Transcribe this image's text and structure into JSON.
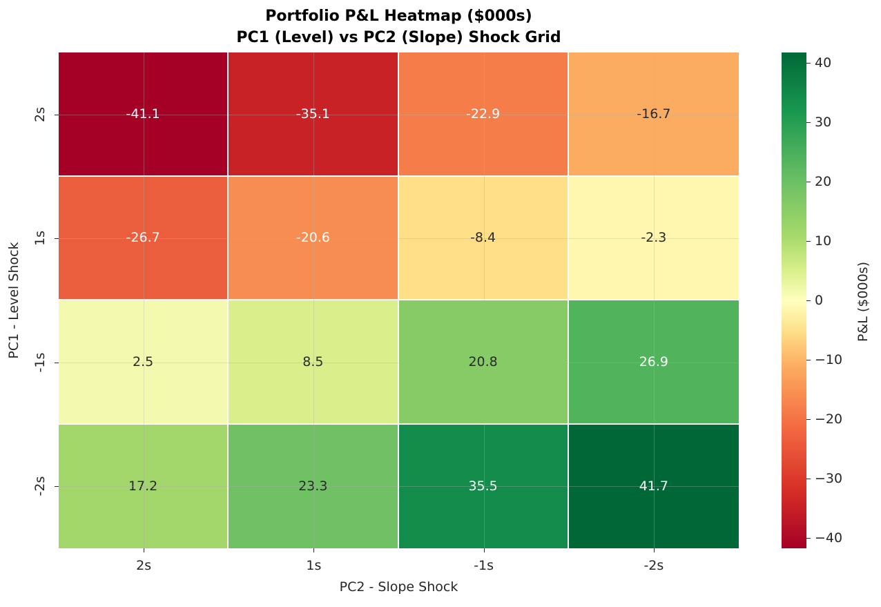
{
  "title": {
    "line1": "Portfolio P&L Heatmap ($000s)",
    "line2": "PC1 (Level) vs PC2 (Slope) Shock Grid"
  },
  "axes": {
    "xlabel": "PC2 - Slope Shock",
    "ylabel": "PC1 - Level Shock",
    "xticks": [
      "2s",
      "1s",
      "-1s",
      "-2s"
    ],
    "yticks": [
      "2s",
      "1s",
      "-1s",
      "-2s"
    ]
  },
  "colorbar": {
    "label": "P&L ($000s)",
    "ticks": [
      "40",
      "30",
      "20",
      "10",
      "0",
      "−10",
      "−20",
      "−30",
      "−40"
    ],
    "tick_values": [
      40,
      30,
      20,
      10,
      0,
      -10,
      -20,
      -30,
      -40
    ],
    "range": [
      -41.7,
      41.7
    ],
    "colormap": "RdYlGn"
  },
  "cells": [
    [
      {
        "text": "-41.1",
        "bg": "#a50026",
        "fg": "#ffffff"
      },
      {
        "text": "-35.1",
        "bg": "#c82227",
        "fg": "#ffffff"
      },
      {
        "text": "-22.9",
        "bg": "#f47d4a",
        "fg": "#ffffff"
      },
      {
        "text": "-16.7",
        "bg": "#fcac60",
        "fg": "#262626"
      }
    ],
    [
      {
        "text": "-26.7",
        "bg": "#ea5e3e",
        "fg": "#ffffff"
      },
      {
        "text": "-20.6",
        "bg": "#f88d52",
        "fg": "#ffffff"
      },
      {
        "text": "-8.4",
        "bg": "#fedf88",
        "fg": "#262626"
      },
      {
        "text": "-2.3",
        "bg": "#fff6af",
        "fg": "#262626"
      }
    ],
    [
      {
        "text": "2.5",
        "bg": "#f3faaf",
        "fg": "#262626"
      },
      {
        "text": "8.5",
        "bg": "#d9ef8b",
        "fg": "#262626"
      },
      {
        "text": "20.8",
        "bg": "#87cb67",
        "fg": "#262626"
      },
      {
        "text": "26.9",
        "bg": "#52b35d",
        "fg": "#ffffff"
      }
    ],
    [
      {
        "text": "17.2",
        "bg": "#a2d66a",
        "fg": "#262626"
      },
      {
        "text": "23.3",
        "bg": "#70c164",
        "fg": "#262626"
      },
      {
        "text": "35.5",
        "bg": "#138b4a",
        "fg": "#ffffff"
      },
      {
        "text": "41.7",
        "bg": "#006837",
        "fg": "#ffffff"
      }
    ]
  ],
  "chart_data": {
    "type": "heatmap",
    "title": "Portfolio P&L Heatmap ($000s)\nPC1 (Level) vs PC2 (Slope) Shock Grid",
    "xlabel": "PC2 - Slope Shock",
    "ylabel": "PC1 - Level Shock",
    "x": [
      "2s",
      "1s",
      "-1s",
      "-2s"
    ],
    "y": [
      "2s",
      "1s",
      "-1s",
      "-2s"
    ],
    "values": [
      [
        -41.1,
        -35.1,
        -22.9,
        -16.7
      ],
      [
        -26.7,
        -20.6,
        -8.4,
        -2.3
      ],
      [
        2.5,
        8.5,
        20.8,
        26.9
      ],
      [
        17.2,
        23.3,
        35.5,
        41.7
      ]
    ],
    "colorbar_label": "P&L ($000s)",
    "colormap": "RdYlGn",
    "vmin": -41.7,
    "vmax": 41.7,
    "annotations": true,
    "grid": true
  }
}
